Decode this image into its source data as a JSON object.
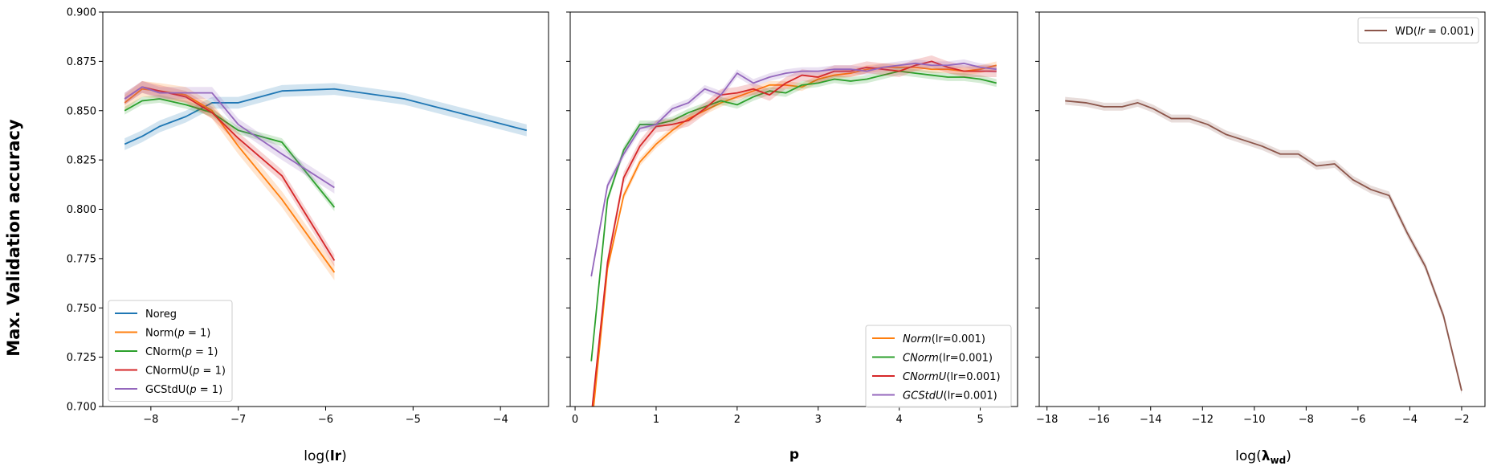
{
  "figure": {
    "ylabel": "Max. Validation accuracy"
  },
  "chart_data": [
    {
      "type": "line",
      "xlabel": "log(lr)",
      "ylabel": "Max. Validation accuracy",
      "xlim": [
        -8.55,
        -3.45
      ],
      "ylim": [
        0.7,
        0.9
      ],
      "xticks": [
        -8,
        -7,
        -6,
        -5,
        -4
      ],
      "yticks": [
        0.7,
        0.725,
        0.75,
        0.775,
        0.8,
        0.825,
        0.85,
        0.875,
        0.9
      ],
      "legend_position": "lower-left",
      "grid": false,
      "series": [
        {
          "name": "Noreg",
          "color": "#1f77b4",
          "x": [
            -8.3,
            -8.1,
            -7.9,
            -7.6,
            -7.3,
            -7.0,
            -6.5,
            -5.9,
            -5.1,
            -4.4,
            -3.7
          ],
          "y": [
            0.833,
            0.837,
            0.842,
            0.847,
            0.854,
            0.854,
            0.86,
            0.861,
            0.856,
            0.848,
            0.84
          ],
          "band": 0.003
        },
        {
          "name": "Norm(p = 1)",
          "color": "#ff7f0e",
          "x": [
            -8.3,
            -8.1,
            -7.9,
            -7.6,
            -7.3,
            -7.0,
            -6.5,
            -5.9
          ],
          "y": [
            0.854,
            0.861,
            0.86,
            0.858,
            0.85,
            0.832,
            0.805,
            0.768
          ],
          "band": 0.004
        },
        {
          "name": "CNorm(p = 1)",
          "color": "#2ca02c",
          "x": [
            -8.3,
            -8.1,
            -7.9,
            -7.6,
            -7.3,
            -7.0,
            -6.5,
            -5.9
          ],
          "y": [
            0.85,
            0.855,
            0.856,
            0.853,
            0.849,
            0.84,
            0.834,
            0.801
          ],
          "band": 0.002
        },
        {
          "name": "CNormU(p = 1)",
          "color": "#d62728",
          "x": [
            -8.3,
            -8.1,
            -7.9,
            -7.6,
            -7.3,
            -7.0,
            -6.5,
            -5.9
          ],
          "y": [
            0.856,
            0.862,
            0.86,
            0.857,
            0.849,
            0.836,
            0.817,
            0.774
          ],
          "band": 0.003
        },
        {
          "name": "GCStdU(p = 1)",
          "color": "#9467bd",
          "x": [
            -8.3,
            -8.1,
            -7.9,
            -7.6,
            -7.3,
            -7.0,
            -6.5,
            -5.9
          ],
          "y": [
            0.856,
            0.862,
            0.859,
            0.859,
            0.859,
            0.843,
            0.828,
            0.811
          ],
          "band": 0.003
        }
      ]
    },
    {
      "type": "line",
      "xlabel": "p",
      "xlim": [
        -0.06,
        5.46
      ],
      "ylim": [
        0.7,
        0.9
      ],
      "xticks": [
        0,
        1,
        2,
        3,
        4,
        5
      ],
      "yticks": [
        0.7,
        0.725,
        0.75,
        0.775,
        0.8,
        0.825,
        0.85,
        0.875,
        0.9
      ],
      "legend_position": "lower-right",
      "grid": false,
      "series": [
        {
          "name": "Norm(lr=0.001)",
          "color": "#ff7f0e",
          "x": [
            0.2,
            0.4,
            0.6,
            0.8,
            1.0,
            1.2,
            1.4,
            1.6,
            1.8,
            2.0,
            2.2,
            2.4,
            2.6,
            2.8,
            3.0,
            3.2,
            3.4,
            3.6,
            3.8,
            4.0,
            4.2,
            4.4,
            4.6,
            4.8,
            5.0,
            5.2
          ],
          "y": [
            0.688,
            0.77,
            0.807,
            0.824,
            0.833,
            0.84,
            0.846,
            0.85,
            0.854,
            0.857,
            0.86,
            0.863,
            0.863,
            0.862,
            0.866,
            0.868,
            0.869,
            0.871,
            0.872,
            0.872,
            0.872,
            0.871,
            0.871,
            0.87,
            0.871,
            0.873
          ],
          "band": 0.002
        },
        {
          "name": "CNorm(lr=0.001)",
          "color": "#2ca02c",
          "x": [
            0.2,
            0.4,
            0.6,
            0.8,
            1.0,
            1.2,
            1.4,
            1.6,
            1.8,
            2.0,
            2.2,
            2.4,
            2.6,
            2.8,
            3.0,
            3.2,
            3.4,
            3.6,
            3.8,
            4.0,
            4.2,
            4.4,
            4.6,
            4.8,
            5.0,
            5.2
          ],
          "y": [
            0.723,
            0.805,
            0.83,
            0.843,
            0.843,
            0.845,
            0.849,
            0.852,
            0.855,
            0.853,
            0.857,
            0.86,
            0.859,
            0.863,
            0.864,
            0.866,
            0.865,
            0.866,
            0.868,
            0.87,
            0.869,
            0.868,
            0.867,
            0.867,
            0.866,
            0.864
          ],
          "band": 0.002
        },
        {
          "name": "CNormU(lr=0.001)",
          "color": "#d62728",
          "x": [
            0.2,
            0.4,
            0.6,
            0.8,
            1.0,
            1.2,
            1.4,
            1.6,
            1.8,
            2.0,
            2.2,
            2.4,
            2.6,
            2.8,
            3.0,
            3.2,
            3.4,
            3.6,
            3.8,
            4.0,
            4.2,
            4.4,
            4.6,
            4.8,
            5.0,
            5.2
          ],
          "y": [
            0.695,
            0.773,
            0.816,
            0.832,
            0.842,
            0.843,
            0.845,
            0.851,
            0.858,
            0.859,
            0.861,
            0.858,
            0.864,
            0.868,
            0.867,
            0.87,
            0.87,
            0.872,
            0.871,
            0.87,
            0.873,
            0.875,
            0.872,
            0.87,
            0.87,
            0.87
          ],
          "band": 0.003
        },
        {
          "name": "GCStdU(lr=0.001)",
          "color": "#9467bd",
          "x": [
            0.2,
            0.4,
            0.6,
            0.8,
            1.0,
            1.2,
            1.4,
            1.6,
            1.8,
            2.0,
            2.2,
            2.4,
            2.6,
            2.8,
            3.0,
            3.2,
            3.4,
            3.6,
            3.8,
            4.0,
            4.2,
            4.4,
            4.6,
            4.8,
            5.0,
            5.2
          ],
          "y": [
            0.766,
            0.812,
            0.828,
            0.841,
            0.843,
            0.851,
            0.854,
            0.861,
            0.858,
            0.869,
            0.864,
            0.867,
            0.869,
            0.87,
            0.87,
            0.871,
            0.871,
            0.87,
            0.872,
            0.873,
            0.874,
            0.873,
            0.873,
            0.874,
            0.872,
            0.871
          ],
          "band": 0.002
        }
      ]
    },
    {
      "type": "line",
      "xlabel": "log(λ_wd)",
      "xlim": [
        -18.3,
        -1.1
      ],
      "ylim": [
        0.7,
        0.9
      ],
      "xticks": [
        -18,
        -16,
        -14,
        -12,
        -10,
        -8,
        -6,
        -4,
        -2
      ],
      "yticks": [
        0.7,
        0.725,
        0.75,
        0.775,
        0.8,
        0.825,
        0.85,
        0.875,
        0.9
      ],
      "legend_position": "top-right",
      "grid": false,
      "series": [
        {
          "name": "WD(lr = 0.001)",
          "color": "#8c564b",
          "x": [
            -17.3,
            -16.5,
            -15.8,
            -15.1,
            -14.5,
            -13.9,
            -13.2,
            -12.5,
            -11.8,
            -11.1,
            -10.4,
            -9.7,
            -9.0,
            -8.3,
            -7.6,
            -6.9,
            -6.2,
            -5.5,
            -4.8,
            -4.1,
            -3.4,
            -2.7,
            -2.0
          ],
          "y": [
            0.855,
            0.854,
            0.852,
            0.852,
            0.854,
            0.851,
            0.846,
            0.846,
            0.843,
            0.838,
            0.835,
            0.832,
            0.828,
            0.828,
            0.822,
            0.823,
            0.815,
            0.81,
            0.807,
            0.788,
            0.771,
            0.746,
            0.708
          ],
          "band": 0.002
        }
      ]
    }
  ]
}
